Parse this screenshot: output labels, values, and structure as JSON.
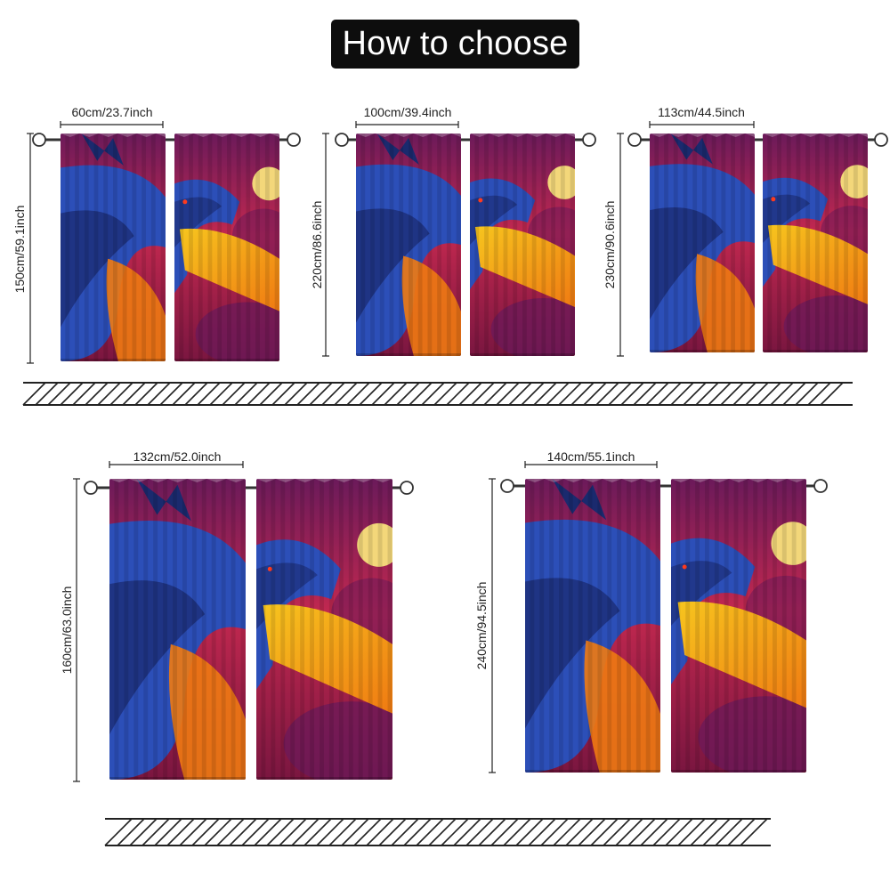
{
  "title": "How to choose",
  "colors": {
    "background": "#ffffff",
    "title_bg": "#0d0d0d",
    "title_text": "#ffffff",
    "sky_top": "#6b1a5a",
    "sky_mid": "#c2284f",
    "sky_bottom": "#7a1640",
    "dragon_blue": "#2c4fb8",
    "dragon_dark": "#1a2a6e",
    "fire_yellow": "#f7c51e",
    "fire_orange": "#f07a12",
    "moon": "#f3d77a",
    "rod": "#333333"
  },
  "sizes": [
    {
      "width_label": "60cm/23.7inch",
      "height_label": "150cm/59.1inch"
    },
    {
      "width_label": "100cm/39.4inch",
      "height_label": "220cm/86.6inch"
    },
    {
      "width_label": "113cm/44.5inch",
      "height_label": "230cm/90.6inch"
    },
    {
      "width_label": "132cm/52.0inch",
      "height_label": "160cm/63.0inch"
    },
    {
      "width_label": "140cm/55.1inch",
      "height_label": "240cm/94.5inch"
    }
  ]
}
